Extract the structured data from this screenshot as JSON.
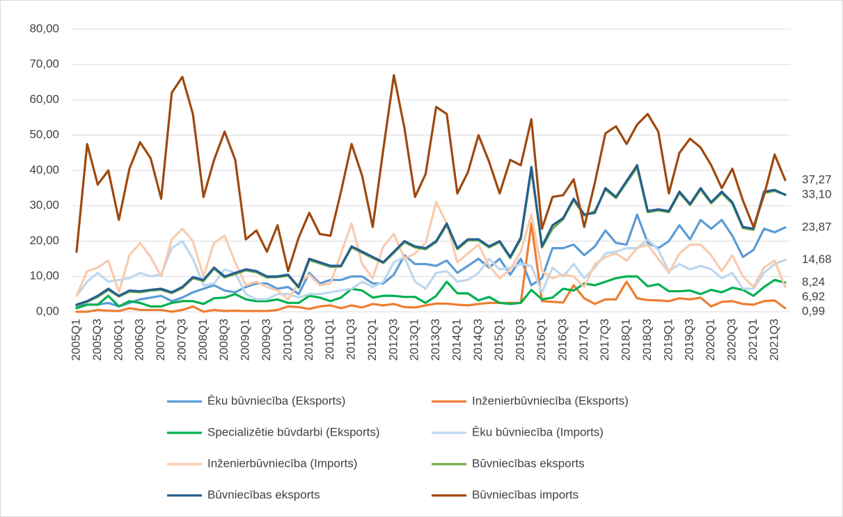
{
  "chart_data": {
    "type": "line",
    "categories": [
      "2005Q1",
      null,
      "2005Q3",
      null,
      "2006Q1",
      null,
      "2006Q3",
      null,
      "2007Q1",
      null,
      "2007Q3",
      null,
      "2008Q1",
      null,
      "2008Q3",
      null,
      "2009Q1",
      null,
      "2009Q3",
      null,
      "2010Q1",
      null,
      "2010Q3",
      null,
      "2011Q1",
      null,
      "2011Q3",
      null,
      "2012Q1",
      null,
      "2012Q3",
      null,
      "2013Q1",
      null,
      "2013Q3",
      null,
      "2014Q1",
      null,
      "2014Q3",
      null,
      "2015Q1",
      null,
      "2015Q3",
      null,
      "2016Q1",
      null,
      "2016Q3",
      null,
      "2017Q1",
      null,
      "2017Q3",
      null,
      "2018Q1",
      null,
      "2018Q3",
      null,
      "2019Q1",
      null,
      "2019Q3",
      null,
      "2020Q1",
      null,
      "2020Q3",
      null,
      "2021Q1",
      null,
      "2021Q3",
      null
    ],
    "ylim": [
      0,
      80
    ],
    "yticks": [
      {
        "value": 0,
        "label": "0,00"
      },
      {
        "value": 10,
        "label": "10,00"
      },
      {
        "value": 20,
        "label": "20,00"
      },
      {
        "value": 30,
        "label": "30,00"
      },
      {
        "value": 40,
        "label": "40,00"
      },
      {
        "value": 50,
        "label": "50,00"
      },
      {
        "value": 60,
        "label": "60,00"
      },
      {
        "value": 70,
        "label": "70,00"
      },
      {
        "value": 80,
        "label": "80,00"
      }
    ],
    "grid": true,
    "series": [
      {
        "name": "Ēku būvniecība (Eksports)",
        "color": "#5b9bd5",
        "values": [
          1.5,
          2,
          2,
          2.5,
          1.5,
          2.5,
          3.5,
          4,
          4.5,
          3,
          4,
          5.5,
          6.5,
          7.5,
          6,
          5.5,
          7,
          8,
          8,
          6.5,
          7,
          5,
          11,
          8,
          9,
          9,
          10,
          10,
          8,
          8,
          10.5,
          16,
          13.5,
          13.5,
          13,
          14.5,
          11,
          13,
          15,
          12.5,
          15,
          10.5,
          15,
          7.5,
          9.5,
          18,
          18,
          19,
          16,
          18.5,
          23,
          19.5,
          19,
          27.5,
          19.5,
          18,
          20,
          24.5,
          20.5,
          26,
          23.5,
          26,
          21.5,
          15.5,
          17.5,
          23.5,
          22.5,
          23.87
        ],
        "value_labels": [
          null,
          null,
          null,
          null,
          null,
          null,
          null,
          null,
          null,
          null,
          null,
          null,
          null,
          null,
          null,
          null,
          null,
          null,
          null,
          null,
          null,
          null,
          null,
          null,
          null,
          null,
          null,
          null,
          null,
          null,
          null,
          null,
          null,
          null,
          null,
          null,
          null,
          null,
          null,
          null,
          null,
          null,
          null,
          null,
          null,
          null,
          null,
          null,
          null,
          null,
          null,
          null,
          null,
          null,
          null,
          null,
          null,
          null,
          null,
          null,
          null,
          null,
          null,
          null,
          null,
          null,
          null,
          "23,87"
        ]
      },
      {
        "name": "Inženierbūvniecība (Eksports)",
        "color": "#ed7d31",
        "values": [
          0,
          0,
          0.5,
          0.3,
          0.2,
          1,
          0.5,
          0.5,
          0.5,
          0,
          0.5,
          1.5,
          0,
          0.5,
          0.2,
          0.3,
          0.2,
          0.2,
          0.2,
          0.5,
          1.5,
          1.3,
          0.8,
          1.5,
          1.8,
          1,
          1.8,
          1.2,
          2.2,
          1.8,
          2.2,
          1.3,
          1.2,
          1.8,
          2.3,
          2.3,
          2,
          1.8,
          2.2,
          2.5,
          2.5,
          2.5,
          2.5,
          25,
          3,
          2.8,
          2.6,
          7.5,
          3.8,
          2.2,
          3.5,
          3.5,
          8.5,
          3.8,
          3.3,
          3.2,
          3,
          3.8,
          3.5,
          4,
          1.5,
          2.8,
          3,
          2.2,
          2,
          3,
          3.2,
          0.99
        ],
        "value_labels": [
          null,
          null,
          null,
          null,
          null,
          null,
          null,
          null,
          null,
          null,
          null,
          null,
          null,
          null,
          null,
          null,
          null,
          null,
          null,
          null,
          null,
          null,
          null,
          null,
          null,
          null,
          null,
          null,
          null,
          null,
          null,
          null,
          null,
          null,
          null,
          null,
          null,
          null,
          null,
          null,
          null,
          null,
          null,
          null,
          null,
          null,
          null,
          null,
          null,
          null,
          null,
          null,
          null,
          null,
          null,
          null,
          null,
          null,
          null,
          null,
          null,
          null,
          null,
          null,
          null,
          null,
          null,
          "0,99"
        ]
      },
      {
        "name": "Specializētie būvdarbi (Eksports)",
        "color": "#00b050",
        "values": [
          1,
          2,
          2,
          4.5,
          1.5,
          3,
          2.5,
          1.5,
          1.5,
          2.5,
          3,
          3,
          2.2,
          3.8,
          4,
          5,
          3.5,
          3,
          3,
          3.5,
          2.5,
          2.5,
          4.5,
          4,
          3,
          4,
          6.5,
          6,
          4,
          4.5,
          4.5,
          4.2,
          4.2,
          2.5,
          4.5,
          8.5,
          5.2,
          5.2,
          3.2,
          4.2,
          2.5,
          2.2,
          2.5,
          6.2,
          3.5,
          4,
          6.5,
          6,
          8,
          7.5,
          8.5,
          9.5,
          10,
          10,
          7.2,
          7.8,
          5.8,
          5.8,
          6,
          5,
          6.2,
          5.5,
          6.8,
          6.2,
          4.5,
          7,
          9,
          8.24
        ],
        "value_labels": [
          null,
          null,
          null,
          null,
          null,
          null,
          null,
          null,
          null,
          null,
          null,
          null,
          null,
          null,
          null,
          null,
          null,
          null,
          null,
          null,
          null,
          null,
          null,
          null,
          null,
          null,
          null,
          null,
          null,
          null,
          null,
          null,
          null,
          null,
          null,
          null,
          null,
          null,
          null,
          null,
          null,
          null,
          null,
          null,
          null,
          null,
          null,
          null,
          null,
          null,
          null,
          null,
          null,
          null,
          null,
          null,
          null,
          null,
          null,
          null,
          null,
          null,
          null,
          null,
          null,
          null,
          null,
          "8,24"
        ]
      },
      {
        "name": "Ēku būvniecība (Imports)",
        "color": "#bdd7ee",
        "values": [
          4.5,
          8.5,
          11,
          8.5,
          9,
          9.5,
          11,
          10,
          10.5,
          18,
          20,
          15,
          7.5,
          8,
          12,
          11,
          5,
          3.5,
          3.5,
          5,
          5,
          4,
          5,
          5,
          5.5,
          6,
          6.5,
          8.5,
          7,
          8.5,
          14,
          15.5,
          8.5,
          6.5,
          11,
          11.5,
          8.5,
          9,
          11,
          15,
          12,
          12.5,
          13.5,
          13,
          5.5,
          12.5,
          10,
          13.5,
          9.5,
          12.5,
          16.5,
          17,
          18,
          18,
          20.5,
          17.5,
          11.5,
          13.5,
          12,
          13,
          12,
          9.5,
          11,
          6.5,
          6.5,
          11,
          13.5,
          14.68
        ],
        "value_labels": [
          null,
          null,
          null,
          null,
          null,
          null,
          null,
          null,
          null,
          null,
          null,
          null,
          null,
          null,
          null,
          null,
          null,
          null,
          null,
          null,
          null,
          null,
          null,
          null,
          null,
          null,
          null,
          null,
          null,
          null,
          null,
          null,
          null,
          null,
          null,
          null,
          null,
          null,
          null,
          null,
          null,
          null,
          null,
          null,
          null,
          null,
          null,
          null,
          null,
          null,
          null,
          null,
          null,
          null,
          null,
          null,
          null,
          null,
          null,
          null,
          null,
          null,
          null,
          null,
          null,
          null,
          null,
          "14,68"
        ]
      },
      {
        "name": "Inženierbūvniecība (Imports)",
        "color": "#f8cbad",
        "values": [
          4.5,
          11.5,
          12.5,
          14.5,
          5.5,
          16,
          19.5,
          15.5,
          10,
          20.5,
          23.5,
          20,
          10,
          19.5,
          21.5,
          14,
          7.5,
          8.5,
          7,
          6,
          3.5,
          8,
          10.5,
          7.5,
          8,
          16.5,
          25,
          13.5,
          9.5,
          18.5,
          22,
          15,
          16.5,
          19.5,
          31,
          25,
          14,
          16.5,
          19,
          13,
          9.5,
          12,
          17,
          27.5,
          11.5,
          9.5,
          10.5,
          10,
          7,
          13.5,
          15.5,
          16.5,
          14.5,
          18,
          19,
          15,
          11,
          16.5,
          19,
          19,
          16,
          11.5,
          16,
          10,
          7,
          12.5,
          14.5,
          6.92
        ],
        "value_labels": [
          null,
          null,
          null,
          null,
          null,
          null,
          null,
          null,
          null,
          null,
          null,
          null,
          null,
          null,
          null,
          null,
          null,
          null,
          null,
          null,
          null,
          null,
          null,
          null,
          null,
          null,
          null,
          null,
          null,
          null,
          null,
          null,
          null,
          null,
          null,
          null,
          null,
          null,
          null,
          null,
          null,
          null,
          null,
          null,
          null,
          null,
          null,
          null,
          null,
          null,
          null,
          null,
          null,
          null,
          null,
          null,
          null,
          null,
          null,
          null,
          null,
          null,
          null,
          null,
          null,
          null,
          null,
          "6,92"
        ]
      },
      {
        "name": "Būvniecības eksports",
        "color": "#70ad47",
        "values": [
          1.8,
          2.8,
          4.2,
          6.2,
          4.3,
          5.7,
          5.5,
          6,
          6.2,
          5.3,
          6.7,
          9.5,
          8.7,
          12.2,
          9.7,
          10.7,
          11.7,
          11.2,
          9.7,
          9.8,
          10.2,
          6.8,
          14.6,
          13.7,
          12.7,
          12.8,
          18.2,
          16.7,
          15.2,
          13.8,
          16.7,
          19.7,
          18.2,
          17.7,
          19.7,
          24.6,
          17.7,
          20.2,
          20.2,
          18.2,
          19.7,
          15.2,
          20.6,
          40.2,
          18.2,
          23.5,
          26.2,
          31.6,
          27.2,
          28.5,
          34.6,
          32.2,
          36.6,
          40.8,
          28.2,
          28.7,
          28.2,
          33.6,
          30.2,
          34.6,
          30.7,
          33.6,
          30.6,
          23.7,
          23.2,
          33.6,
          34.2,
          33.2
        ]
      },
      {
        "name": "Būvniecības eksports",
        "color": "#255e91",
        "values": [
          2,
          3,
          4.5,
          6.5,
          4.5,
          6,
          5.8,
          6.2,
          6.5,
          5.5,
          7,
          9.8,
          9,
          12.5,
          10,
          11,
          12,
          11.5,
          10,
          10,
          10.5,
          7,
          15,
          14,
          13,
          13,
          18.5,
          17,
          15.5,
          14,
          17,
          20,
          18.5,
          18,
          20,
          25,
          18,
          20.5,
          20.5,
          18.5,
          20,
          15.5,
          21,
          41,
          18.5,
          24.5,
          26.5,
          32,
          27.5,
          28,
          35,
          32.5,
          37,
          41.5,
          28.5,
          29,
          28.5,
          34,
          30.5,
          35,
          31,
          34,
          31,
          24,
          23.5,
          34,
          34.5,
          33.1
        ],
        "value_labels": [
          null,
          null,
          null,
          null,
          null,
          null,
          null,
          null,
          null,
          null,
          null,
          null,
          null,
          null,
          null,
          null,
          null,
          null,
          null,
          null,
          null,
          null,
          null,
          null,
          null,
          null,
          null,
          null,
          null,
          null,
          null,
          null,
          null,
          null,
          null,
          null,
          null,
          null,
          null,
          null,
          null,
          null,
          null,
          null,
          null,
          null,
          null,
          null,
          null,
          null,
          null,
          null,
          null,
          null,
          null,
          null,
          null,
          null,
          null,
          null,
          null,
          null,
          null,
          null,
          null,
          null,
          null,
          "33,10"
        ]
      },
      {
        "name": "Būvniecības imports",
        "color": "#9e480e",
        "values": [
          17,
          47.5,
          36,
          40,
          26,
          40.5,
          48,
          43.5,
          32,
          62,
          66.5,
          56,
          32.5,
          43,
          51,
          43,
          20.5,
          23,
          17,
          24.5,
          11.5,
          21,
          28,
          22,
          21.5,
          34,
          47.5,
          38.5,
          24,
          46,
          67,
          52,
          32.5,
          39,
          58,
          56,
          33.5,
          39.5,
          50,
          42.5,
          33.5,
          43,
          41.5,
          54.5,
          23.5,
          32.5,
          33,
          37.5,
          24,
          36.5,
          50.5,
          52.5,
          47.5,
          53,
          56,
          51,
          33.5,
          45,
          49,
          46.5,
          41.5,
          35,
          40.5,
          31.5,
          24,
          33,
          44.5,
          37.27
        ],
        "value_labels": [
          null,
          null,
          null,
          null,
          null,
          null,
          null,
          null,
          null,
          null,
          null,
          null,
          null,
          null,
          null,
          null,
          null,
          null,
          null,
          null,
          null,
          null,
          null,
          null,
          null,
          null,
          null,
          null,
          null,
          null,
          null,
          null,
          null,
          null,
          null,
          null,
          null,
          null,
          null,
          null,
          null,
          null,
          null,
          null,
          null,
          null,
          null,
          null,
          null,
          null,
          null,
          null,
          null,
          null,
          null,
          null,
          null,
          null,
          null,
          null,
          null,
          null,
          null,
          null,
          null,
          null,
          null,
          "37,27"
        ]
      }
    ]
  }
}
